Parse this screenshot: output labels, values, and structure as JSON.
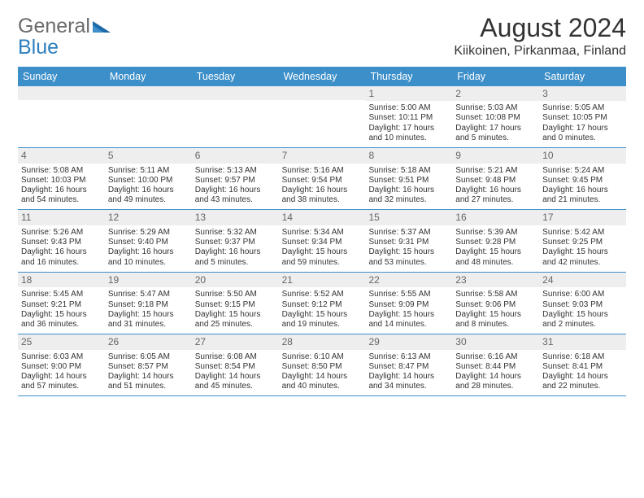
{
  "header": {
    "logo_word1": "General",
    "logo_word2": "Blue",
    "title": "August 2024",
    "location": "Kiikoinen, Pirkanmaa, Finland"
  },
  "colors": {
    "header_blue": "#3d8fc9",
    "logo_gray": "#6b6b6b",
    "logo_blue": "#2c7fbf",
    "daynum_bg": "#eeeeee",
    "daynum_color": "#666666",
    "body_text": "#333333",
    "border_blue": "#3d8fc9"
  },
  "typography": {
    "title_fontsize": 32,
    "location_fontsize": 16,
    "weekday_fontsize": 12.5,
    "daynum_fontsize": 12,
    "body_fontsize": 10
  },
  "weekdays": [
    "Sunday",
    "Monday",
    "Tuesday",
    "Wednesday",
    "Thursday",
    "Friday",
    "Saturday"
  ],
  "weeks": [
    [
      {
        "num": "",
        "lines": []
      },
      {
        "num": "",
        "lines": []
      },
      {
        "num": "",
        "lines": []
      },
      {
        "num": "",
        "lines": []
      },
      {
        "num": "1",
        "lines": [
          "Sunrise: 5:00 AM",
          "Sunset: 10:11 PM",
          "Daylight: 17 hours",
          "and 10 minutes."
        ]
      },
      {
        "num": "2",
        "lines": [
          "Sunrise: 5:03 AM",
          "Sunset: 10:08 PM",
          "Daylight: 17 hours",
          "and 5 minutes."
        ]
      },
      {
        "num": "3",
        "lines": [
          "Sunrise: 5:05 AM",
          "Sunset: 10:05 PM",
          "Daylight: 17 hours",
          "and 0 minutes."
        ]
      }
    ],
    [
      {
        "num": "4",
        "lines": [
          "Sunrise: 5:08 AM",
          "Sunset: 10:03 PM",
          "Daylight: 16 hours",
          "and 54 minutes."
        ]
      },
      {
        "num": "5",
        "lines": [
          "Sunrise: 5:11 AM",
          "Sunset: 10:00 PM",
          "Daylight: 16 hours",
          "and 49 minutes."
        ]
      },
      {
        "num": "6",
        "lines": [
          "Sunrise: 5:13 AM",
          "Sunset: 9:57 PM",
          "Daylight: 16 hours",
          "and 43 minutes."
        ]
      },
      {
        "num": "7",
        "lines": [
          "Sunrise: 5:16 AM",
          "Sunset: 9:54 PM",
          "Daylight: 16 hours",
          "and 38 minutes."
        ]
      },
      {
        "num": "8",
        "lines": [
          "Sunrise: 5:18 AM",
          "Sunset: 9:51 PM",
          "Daylight: 16 hours",
          "and 32 minutes."
        ]
      },
      {
        "num": "9",
        "lines": [
          "Sunrise: 5:21 AM",
          "Sunset: 9:48 PM",
          "Daylight: 16 hours",
          "and 27 minutes."
        ]
      },
      {
        "num": "10",
        "lines": [
          "Sunrise: 5:24 AM",
          "Sunset: 9:45 PM",
          "Daylight: 16 hours",
          "and 21 minutes."
        ]
      }
    ],
    [
      {
        "num": "11",
        "lines": [
          "Sunrise: 5:26 AM",
          "Sunset: 9:43 PM",
          "Daylight: 16 hours",
          "and 16 minutes."
        ]
      },
      {
        "num": "12",
        "lines": [
          "Sunrise: 5:29 AM",
          "Sunset: 9:40 PM",
          "Daylight: 16 hours",
          "and 10 minutes."
        ]
      },
      {
        "num": "13",
        "lines": [
          "Sunrise: 5:32 AM",
          "Sunset: 9:37 PM",
          "Daylight: 16 hours",
          "and 5 minutes."
        ]
      },
      {
        "num": "14",
        "lines": [
          "Sunrise: 5:34 AM",
          "Sunset: 9:34 PM",
          "Daylight: 15 hours",
          "and 59 minutes."
        ]
      },
      {
        "num": "15",
        "lines": [
          "Sunrise: 5:37 AM",
          "Sunset: 9:31 PM",
          "Daylight: 15 hours",
          "and 53 minutes."
        ]
      },
      {
        "num": "16",
        "lines": [
          "Sunrise: 5:39 AM",
          "Sunset: 9:28 PM",
          "Daylight: 15 hours",
          "and 48 minutes."
        ]
      },
      {
        "num": "17",
        "lines": [
          "Sunrise: 5:42 AM",
          "Sunset: 9:25 PM",
          "Daylight: 15 hours",
          "and 42 minutes."
        ]
      }
    ],
    [
      {
        "num": "18",
        "lines": [
          "Sunrise: 5:45 AM",
          "Sunset: 9:21 PM",
          "Daylight: 15 hours",
          "and 36 minutes."
        ]
      },
      {
        "num": "19",
        "lines": [
          "Sunrise: 5:47 AM",
          "Sunset: 9:18 PM",
          "Daylight: 15 hours",
          "and 31 minutes."
        ]
      },
      {
        "num": "20",
        "lines": [
          "Sunrise: 5:50 AM",
          "Sunset: 9:15 PM",
          "Daylight: 15 hours",
          "and 25 minutes."
        ]
      },
      {
        "num": "21",
        "lines": [
          "Sunrise: 5:52 AM",
          "Sunset: 9:12 PM",
          "Daylight: 15 hours",
          "and 19 minutes."
        ]
      },
      {
        "num": "22",
        "lines": [
          "Sunrise: 5:55 AM",
          "Sunset: 9:09 PM",
          "Daylight: 15 hours",
          "and 14 minutes."
        ]
      },
      {
        "num": "23",
        "lines": [
          "Sunrise: 5:58 AM",
          "Sunset: 9:06 PM",
          "Daylight: 15 hours",
          "and 8 minutes."
        ]
      },
      {
        "num": "24",
        "lines": [
          "Sunrise: 6:00 AM",
          "Sunset: 9:03 PM",
          "Daylight: 15 hours",
          "and 2 minutes."
        ]
      }
    ],
    [
      {
        "num": "25",
        "lines": [
          "Sunrise: 6:03 AM",
          "Sunset: 9:00 PM",
          "Daylight: 14 hours",
          "and 57 minutes."
        ]
      },
      {
        "num": "26",
        "lines": [
          "Sunrise: 6:05 AM",
          "Sunset: 8:57 PM",
          "Daylight: 14 hours",
          "and 51 minutes."
        ]
      },
      {
        "num": "27",
        "lines": [
          "Sunrise: 6:08 AM",
          "Sunset: 8:54 PM",
          "Daylight: 14 hours",
          "and 45 minutes."
        ]
      },
      {
        "num": "28",
        "lines": [
          "Sunrise: 6:10 AM",
          "Sunset: 8:50 PM",
          "Daylight: 14 hours",
          "and 40 minutes."
        ]
      },
      {
        "num": "29",
        "lines": [
          "Sunrise: 6:13 AM",
          "Sunset: 8:47 PM",
          "Daylight: 14 hours",
          "and 34 minutes."
        ]
      },
      {
        "num": "30",
        "lines": [
          "Sunrise: 6:16 AM",
          "Sunset: 8:44 PM",
          "Daylight: 14 hours",
          "and 28 minutes."
        ]
      },
      {
        "num": "31",
        "lines": [
          "Sunrise: 6:18 AM",
          "Sunset: 8:41 PM",
          "Daylight: 14 hours",
          "and 22 minutes."
        ]
      }
    ]
  ]
}
